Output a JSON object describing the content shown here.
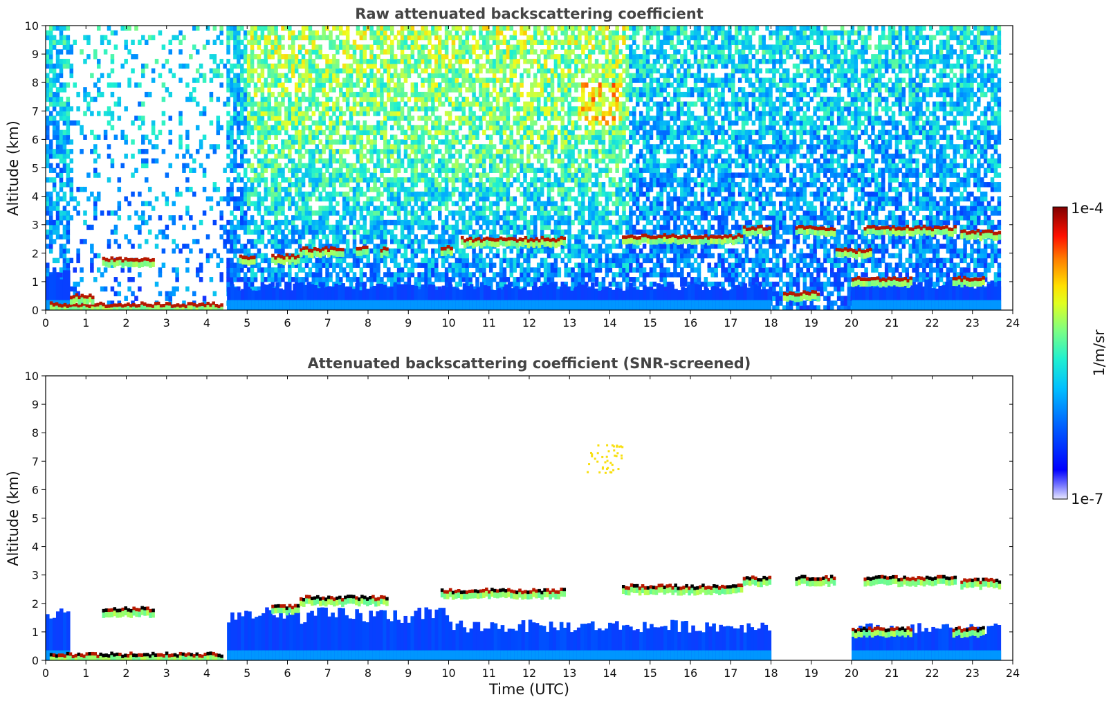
{
  "chart_data": [
    {
      "type": "heatmap",
      "title": "Raw attenuated backscattering coefficient",
      "ylabel": "Altitude (km)",
      "xlabel": "",
      "xlim": [
        0,
        24
      ],
      "ylim": [
        0,
        10
      ],
      "x_ticks": [
        "0",
        "1",
        "2",
        "3",
        "4",
        "5",
        "6",
        "7",
        "8",
        "9",
        "10",
        "11",
        "12",
        "13",
        "14",
        "15",
        "16",
        "17",
        "18",
        "19",
        "20",
        "21",
        "22",
        "23",
        "24"
      ],
      "y_ticks": [
        "0",
        "1",
        "2",
        "3",
        "4",
        "5",
        "6",
        "7",
        "8",
        "9",
        "10"
      ],
      "data_end_time": 23.7,
      "noise": "dense noise at all altitudes, strongest 5-14 UTC aloft",
      "boundary_layer_top_km": [
        {
          "t0": 0,
          "t1": 0.6,
          "h": 1.3
        },
        {
          "t0": 4.5,
          "t1": 18,
          "h": 0.9
        },
        {
          "t0": 20,
          "t1": 23.7,
          "h": 1.0
        }
      ],
      "cloud_layers": [
        {
          "t0": 0.1,
          "t1": 4.4,
          "h": 0.2
        },
        {
          "t0": 0.6,
          "t1": 1.2,
          "h": 0.5
        },
        {
          "t0": 1.4,
          "t1": 2.7,
          "h": 1.8
        },
        {
          "t0": 4.8,
          "t1": 5.2,
          "h": 1.85
        },
        {
          "t0": 5.6,
          "t1": 6.3,
          "h": 1.9
        },
        {
          "t0": 6.3,
          "t1": 7.4,
          "h": 2.15
        },
        {
          "t0": 7.7,
          "t1": 8.0,
          "h": 2.2
        },
        {
          "t0": 8.3,
          "t1": 8.5,
          "h": 2.15
        },
        {
          "t0": 9.8,
          "t1": 10.1,
          "h": 2.2
        },
        {
          "t0": 10.3,
          "t1": 12.9,
          "h": 2.5
        },
        {
          "t0": 14.3,
          "t1": 17.3,
          "h": 2.6
        },
        {
          "t0": 17.3,
          "t1": 18.0,
          "h": 2.9
        },
        {
          "t0": 18.3,
          "t1": 19.2,
          "h": 0.6
        },
        {
          "t0": 18.6,
          "t1": 19.6,
          "h": 2.9
        },
        {
          "t0": 19.6,
          "t1": 20.5,
          "h": 2.1
        },
        {
          "t0": 20.3,
          "t1": 22.6,
          "h": 2.9
        },
        {
          "t0": 22.7,
          "t1": 23.7,
          "h": 2.75
        },
        {
          "t0": 20.0,
          "t1": 21.5,
          "h": 1.1
        },
        {
          "t0": 22.5,
          "t1": 23.3,
          "h": 1.1
        }
      ],
      "colorbar": {
        "label": "1/m/sr",
        "min_label": "1e-7",
        "max_label": "1e-4",
        "scale": "log"
      }
    },
    {
      "type": "heatmap",
      "title": "Attenuated backscattering coefficient (SNR-screened)",
      "ylabel": "Altitude (km)",
      "xlabel": "Time (UTC)",
      "xlim": [
        0,
        24
      ],
      "ylim": [
        0,
        10
      ],
      "x_ticks": [
        "0",
        "1",
        "2",
        "3",
        "4",
        "5",
        "6",
        "7",
        "8",
        "9",
        "10",
        "11",
        "12",
        "13",
        "14",
        "15",
        "16",
        "17",
        "18",
        "19",
        "20",
        "21",
        "22",
        "23",
        "24"
      ],
      "y_ticks": [
        "0",
        "1",
        "2",
        "3",
        "4",
        "5",
        "6",
        "7",
        "8",
        "9",
        "10"
      ],
      "data_end_time": 23.7,
      "noise": "screened; isolated features near 13.5-14 UTC at 6.7-7.6 km",
      "boundary_layer_top_km": [
        {
          "t0": 0,
          "t1": 0.6,
          "h": 1.8
        },
        {
          "t0": 4.5,
          "t1": 10,
          "h": 1.7
        },
        {
          "t0": 10,
          "t1": 18,
          "h": 1.3
        },
        {
          "t0": 20,
          "t1": 23.7,
          "h": 1.2
        }
      ],
      "cloud_layers": [
        {
          "t0": 0.1,
          "t1": 4.4,
          "h": 0.2
        },
        {
          "t0": 1.4,
          "t1": 2.7,
          "h": 1.8
        },
        {
          "t0": 5.6,
          "t1": 6.3,
          "h": 1.9
        },
        {
          "t0": 6.3,
          "t1": 8.5,
          "h": 2.2
        },
        {
          "t0": 9.8,
          "t1": 12.9,
          "h": 2.45
        },
        {
          "t0": 14.3,
          "t1": 17.3,
          "h": 2.6
        },
        {
          "t0": 17.3,
          "t1": 18.0,
          "h": 2.9
        },
        {
          "t0": 18.6,
          "t1": 19.6,
          "h": 2.9
        },
        {
          "t0": 20.3,
          "t1": 22.6,
          "h": 2.9
        },
        {
          "t0": 22.7,
          "t1": 23.7,
          "h": 2.8
        },
        {
          "t0": 20.0,
          "t1": 21.5,
          "h": 1.1
        },
        {
          "t0": 22.5,
          "t1": 23.3,
          "h": 1.1
        }
      ],
      "colorbar": {
        "label": "1/m/sr",
        "min_label": "1e-7",
        "max_label": "1e-4",
        "scale": "log"
      }
    }
  ],
  "colors": {
    "colormap": [
      "#e8e8ff",
      "#0000ff",
      "#0080ff",
      "#00ffff",
      "#80ff80",
      "#ffff00",
      "#ff8000",
      "#ff0000",
      "#800000"
    ],
    "title": "#444444",
    "axis": "#000000"
  }
}
